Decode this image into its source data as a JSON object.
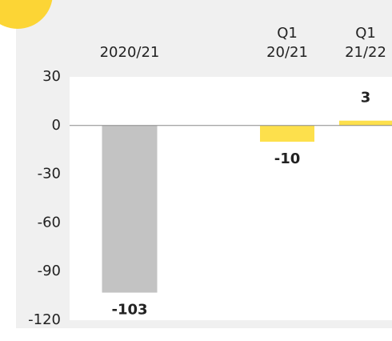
{
  "chart_data": {
    "type": "bar",
    "categories": [
      "2020/21",
      "Q1\n20/21",
      "Q1\n21/22"
    ],
    "values": [
      -103,
      -10,
      3
    ],
    "colors": [
      "#c3c3c3",
      "#fde04c",
      "#fde04c"
    ],
    "ylim": [
      -120,
      30
    ],
    "yticks": [
      30,
      0,
      -30,
      -60,
      -90,
      -120
    ]
  }
}
